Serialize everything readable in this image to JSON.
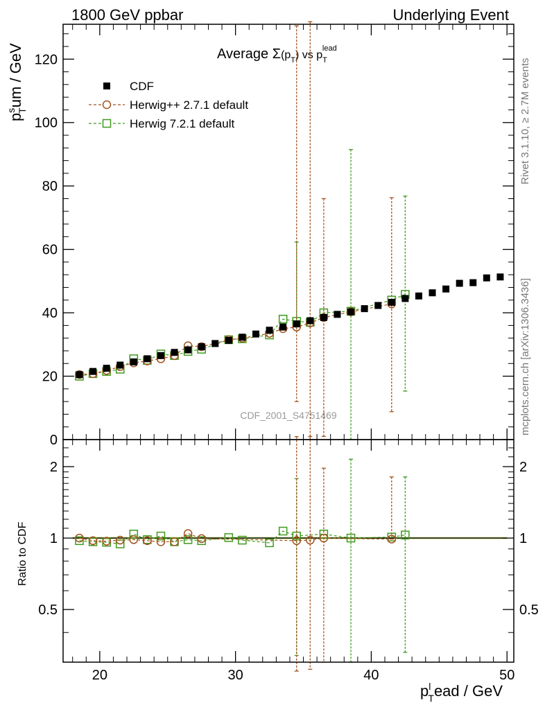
{
  "header": {
    "left": "1800 GeV ppbar",
    "right": "Underlying Event"
  },
  "side_labels": {
    "rivet": "Rivet 3.1.10, ≥ 2.7M events",
    "mcplots": "mcplots.cern.ch [arXiv:1306.3436]"
  },
  "chart_data": [
    {
      "type": "scatter",
      "panel": "main",
      "title": {
        "prefix": "Average ",
        "sigma": "Σ",
        "p": "p",
        "sub": "T",
        "vs": " vs ",
        "p2": "p",
        "sub2": "T",
        "sup2": "lead"
      },
      "ylabel": {
        "p": "p",
        "sup": "s",
        "sub": "T",
        "rest": "um / GeV"
      },
      "watermark": "CDF_2001_S4751469",
      "xlim": [
        17.3,
        50.5
      ],
      "ylim": [
        0,
        131
      ],
      "x_ticks": [
        20,
        30,
        40,
        50
      ],
      "y_ticks": [
        0,
        20,
        40,
        60,
        80,
        100,
        120
      ],
      "legend": {
        "position": "top-left",
        "entries": [
          {
            "label": "CDF",
            "marker": "filled-square",
            "color": "#000000"
          },
          {
            "label": "Herwig++ 2.7.1 default",
            "marker": "open-circle",
            "color": "#a0521e"
          },
          {
            "label": "Herwig 7.2.1 default",
            "marker": "open-square",
            "color": "#3f9a1e"
          }
        ]
      },
      "series": [
        {
          "name": "CDF",
          "color": "#000000",
          "x": [
            18.5,
            19.5,
            20.5,
            21.5,
            22.5,
            23.5,
            24.5,
            25.5,
            26.5,
            27.5,
            28.5,
            29.5,
            30.5,
            31.5,
            32.5,
            33.5,
            34.5,
            35.5,
            36.5,
            37.5,
            38.5,
            39.5,
            40.5,
            41.5,
            42.5,
            43.5,
            44.5,
            45.5,
            46.5,
            47.5,
            48.5,
            49.5
          ],
          "y": [
            20.5,
            21.5,
            22.5,
            23.5,
            24.5,
            25.5,
            26.5,
            27.5,
            28.3,
            29.3,
            30.3,
            31.3,
            32.3,
            33.3,
            34.5,
            35.5,
            36.5,
            37.5,
            38.5,
            39.5,
            40.3,
            41.3,
            42.3,
            43.3,
            44.5,
            45.3,
            46.3,
            47.5,
            49.3,
            49.5,
            51.0,
            51.3
          ]
        },
        {
          "name": "Herwig++ 2.7.1 default",
          "color": "#a0521e",
          "x": [
            18.5,
            19.5,
            20.5,
            21.5,
            22.5,
            23.5,
            24.5,
            25.5,
            26.5,
            27.5,
            29.5,
            30.5,
            32.5,
            33.5,
            34.5,
            35.5,
            36.5,
            38.5,
            41.5
          ],
          "y": [
            20.5,
            20.8,
            21.8,
            23.0,
            24.2,
            24.8,
            25.5,
            26.5,
            29.6,
            29.3,
            31.5,
            32.0,
            33.5,
            35.0,
            35.5,
            36.8,
            38.5,
            40.3,
            42.8
          ],
          "err_low": [
            0,
            0,
            0,
            0,
            0,
            0,
            0,
            0,
            0,
            0,
            0,
            0,
            0,
            0,
            23.5,
            37.0,
            37.5,
            0,
            34.0
          ],
          "err_high": [
            0,
            0,
            0,
            0,
            0,
            0,
            0,
            0,
            0,
            0,
            0,
            0,
            0,
            0,
            95.0,
            95.0,
            37.5,
            0,
            33.5
          ]
        },
        {
          "name": "Herwig 7.2.1 default",
          "color": "#3f9a1e",
          "x": [
            18.5,
            19.5,
            20.5,
            21.5,
            22.5,
            23.5,
            24.5,
            25.5,
            26.5,
            27.5,
            29.5,
            30.5,
            32.5,
            33.5,
            34.5,
            35.5,
            36.5,
            38.5,
            41.5,
            42.5
          ],
          "y": [
            20.0,
            20.8,
            21.5,
            22.2,
            25.5,
            25.0,
            27.0,
            26.5,
            27.8,
            28.5,
            31.5,
            31.8,
            33.0,
            38.0,
            37.3,
            37.0,
            40.0,
            40.5,
            44.0,
            45.8
          ],
          "err_low": [
            0,
            0,
            0,
            0,
            0,
            0,
            0,
            0,
            0,
            0,
            0,
            0,
            0,
            0,
            0,
            0,
            0,
            40.5,
            0,
            30.5
          ],
          "err_high": [
            0,
            0,
            0,
            0,
            0,
            0,
            0,
            0,
            0,
            0,
            0,
            0,
            0,
            0,
            25.0,
            0,
            0,
            51.0,
            0,
            31.0
          ]
        }
      ]
    },
    {
      "type": "scatter",
      "panel": "ratio",
      "ylabel": "Ratio to CDF",
      "xlabel": {
        "p": "p",
        "sup": "l",
        "sub": "T",
        "rest": "ead / GeV"
      },
      "xlim": [
        17.3,
        50.5
      ],
      "ylim": [
        0.3,
        2.6
      ],
      "y_scale": "log",
      "x_ticks": [
        20,
        30,
        40,
        50
      ],
      "y_ticks": [
        0.5,
        1,
        2
      ],
      "series": [
        {
          "name": "Herwig++ 2.7.1 default",
          "color": "#a0521e",
          "x": [
            18.5,
            19.5,
            20.5,
            21.5,
            22.5,
            23.5,
            24.5,
            25.5,
            26.5,
            27.5,
            34.5,
            35.5,
            36.5,
            41.5
          ],
          "y": [
            1.0,
            0.975,
            0.97,
            0.98,
            0.985,
            0.975,
            0.965,
            0.965,
            1.045,
            0.995,
            0.975,
            0.98,
            1.0,
            0.99
          ],
          "err_low": [
            0,
            0,
            0,
            0,
            0,
            0,
            0,
            0,
            0,
            0,
            0.7,
            0.7,
            0.7,
            0
          ],
          "err_high": [
            0,
            0,
            0,
            0,
            0,
            0,
            0,
            0,
            0,
            0,
            1.7,
            1.7,
            0.97,
            0.82
          ]
        },
        {
          "name": "Herwig 7.2.1 default",
          "color": "#3f9a1e",
          "x": [
            18.5,
            19.5,
            20.5,
            21.5,
            22.5,
            23.5,
            24.5,
            25.5,
            26.5,
            27.5,
            29.5,
            30.5,
            32.5,
            33.5,
            34.5,
            36.5,
            38.5,
            41.5,
            42.5
          ],
          "y": [
            0.975,
            0.965,
            0.96,
            0.945,
            1.04,
            0.985,
            1.02,
            0.965,
            0.985,
            0.975,
            1.005,
            0.98,
            0.955,
            1.07,
            1.02,
            1.04,
            1.0,
            1.01,
            1.03
          ],
          "err_low": [
            0,
            0,
            0,
            0,
            0,
            0,
            0,
            0,
            0,
            0,
            0,
            0,
            0,
            0,
            0.7,
            0,
            0.7,
            0,
            0.7
          ],
          "err_high": [
            0,
            0,
            0,
            0,
            0,
            0,
            0,
            0,
            0,
            0,
            0,
            0,
            0,
            0,
            0.76,
            0,
            1.15,
            0,
            0.78
          ]
        }
      ]
    }
  ]
}
